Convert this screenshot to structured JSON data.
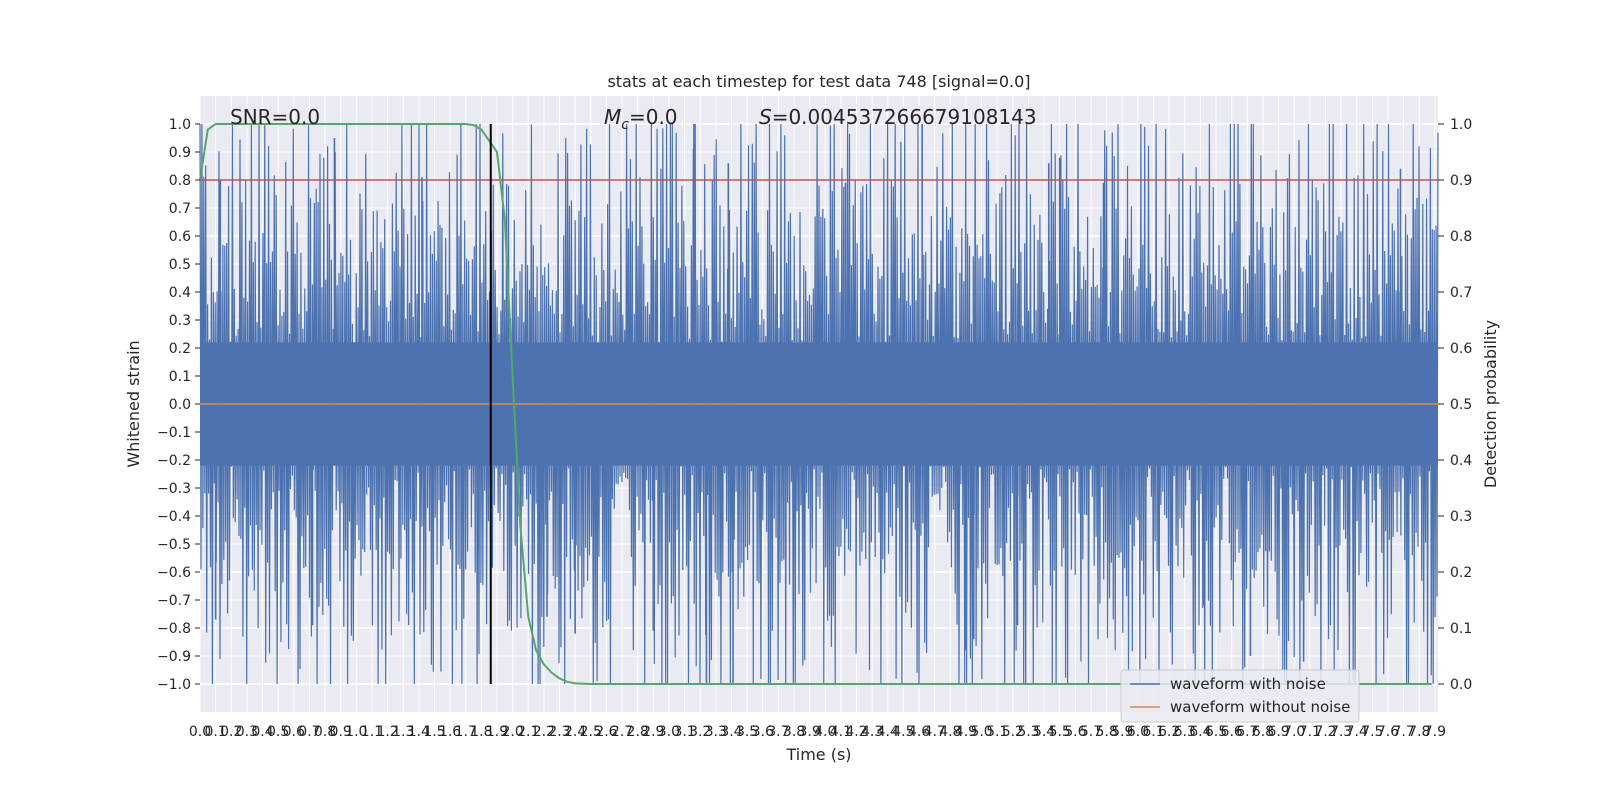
{
  "chart_data": {
    "type": "line",
    "title": "stats at each timestep for test data 748 [signal=0.0]",
    "xlabel": "Time (s)",
    "ylabel": "Whitened strain",
    "y2label": "Detection probability",
    "xlim": [
      0,
      7.92
    ],
    "ylim": [
      -1.1,
      1.1
    ],
    "y2lim": [
      -0.05,
      1.05
    ],
    "x_ticks": [
      "0.0",
      "0.1",
      "0.2",
      "0.3",
      "0.4",
      "0.5",
      "0.6",
      "0.7",
      "0.8",
      "0.9",
      "1.0",
      "1.1",
      "1.2",
      "1.3",
      "1.4",
      "1.5",
      "1.6",
      "1.7",
      "1.8",
      "1.9",
      "2.0",
      "2.1",
      "2.2",
      "2.3",
      "2.4",
      "2.5",
      "2.6",
      "2.7",
      "2.8",
      "2.9",
      "3.0",
      "3.1",
      "3.2",
      "3.3",
      "3.4",
      "3.5",
      "3.6",
      "3.7",
      "3.8",
      "3.9",
      "4.0",
      "4.1",
      "4.2",
      "4.3",
      "4.4",
      "4.5",
      "4.6",
      "4.7",
      "4.8",
      "4.9",
      "5.0",
      "5.1",
      "5.2",
      "5.3",
      "5.4",
      "5.5",
      "5.6",
      "5.7",
      "5.8",
      "5.9",
      "6.0",
      "6.1",
      "6.2",
      "6.3",
      "6.4",
      "6.5",
      "6.6",
      "6.7",
      "6.8",
      "6.9",
      "7.0",
      "7.1",
      "7.2",
      "7.3",
      "7.4",
      "7.5",
      "7.6",
      "7.7",
      "7.8",
      "7.9"
    ],
    "y_ticks": [
      "1.0",
      "0.9",
      "0.8",
      "0.7",
      "0.6",
      "0.5",
      "0.4",
      "0.3",
      "0.2",
      "0.1",
      "0.0",
      "-0.1",
      "-0.2",
      "-0.3",
      "-0.4",
      "-0.5",
      "-0.6",
      "-0.7",
      "-0.8",
      "-0.9",
      "-1.0"
    ],
    "y2_ticks": [
      "1.0",
      "0.9",
      "0.8",
      "0.7",
      "0.6",
      "0.5",
      "0.4",
      "0.3",
      "0.2",
      "0.1",
      "0.0"
    ],
    "annotations": {
      "snr": "SNR=0.0",
      "mc": "=0.0",
      "mc_symbol": "M",
      "mc_sub": "c",
      "s": "=0.004537266679108143",
      "s_symbol": "S"
    },
    "grid": true,
    "legend_position": "lower-right",
    "series": [
      {
        "name": "waveform with noise",
        "color": "#4c72b0",
        "noise_amplitude": 0.45,
        "range": [
          -1.0,
          1.0
        ]
      },
      {
        "name": "waveform without noise",
        "color": "#dd8452",
        "y": 0.0
      },
      {
        "color": "#55a868",
        "axis": "right",
        "x": [
          0.0,
          0.05,
          0.1,
          0.2,
          0.5,
          1.0,
          1.5,
          1.7,
          1.75,
          1.8,
          1.85,
          1.9,
          1.95,
          2.0,
          2.05,
          2.1,
          2.15,
          2.2,
          2.25,
          2.3,
          2.35,
          2.4,
          2.5,
          3.0,
          4.0,
          5.0,
          6.0,
          7.0,
          7.88
        ],
        "y": [
          0.9,
          0.99,
          1.0,
          1.0,
          1.0,
          1.0,
          1.0,
          1.0,
          0.998,
          0.99,
          0.97,
          0.95,
          0.83,
          0.55,
          0.28,
          0.12,
          0.06,
          0.035,
          0.02,
          0.01,
          0.004,
          0.001,
          0.0,
          0.0,
          0.0,
          0.0,
          0.0,
          0.0,
          0.0
        ]
      },
      {
        "color": "#c44e52",
        "axis": "right",
        "y": 0.9
      }
    ],
    "vertical_line_x": 1.86,
    "spikes": [
      {
        "x": 0.86,
        "y": 0.95
      },
      {
        "x": 0.13,
        "y": 0.8
      },
      {
        "x": 1.42,
        "y": 0.81
      },
      {
        "x": 3.16,
        "y": 1.0
      },
      {
        "x": 3.38,
        "y": 0.86
      },
      {
        "x": 4.62,
        "y": 1.0
      },
      {
        "x": 5.43,
        "y": 0.86
      },
      {
        "x": 5.5,
        "y": 0.88
      },
      {
        "x": 7.68,
        "y": 0.84
      },
      {
        "x": 4.13,
        "y": 0.79
      },
      {
        "x": 5.78,
        "y": 0.79
      },
      {
        "x": 0.1,
        "y": -0.77
      },
      {
        "x": 0.72,
        "y": -0.79
      },
      {
        "x": 2.4,
        "y": -0.82
      },
      {
        "x": 3.24,
        "y": -1.0
      },
      {
        "x": 3.41,
        "y": -1.0
      },
      {
        "x": 2.9,
        "y": -0.81
      },
      {
        "x": 4.9,
        "y": -0.88
      },
      {
        "x": 4.95,
        "y": -0.84
      },
      {
        "x": 6.72,
        "y": -0.9
      },
      {
        "x": 7.06,
        "y": -0.92
      },
      {
        "x": 2.22,
        "y": -0.76
      },
      {
        "x": 5.23,
        "y": -0.79
      },
      {
        "x": 6.42,
        "y": -0.72
      }
    ]
  }
}
